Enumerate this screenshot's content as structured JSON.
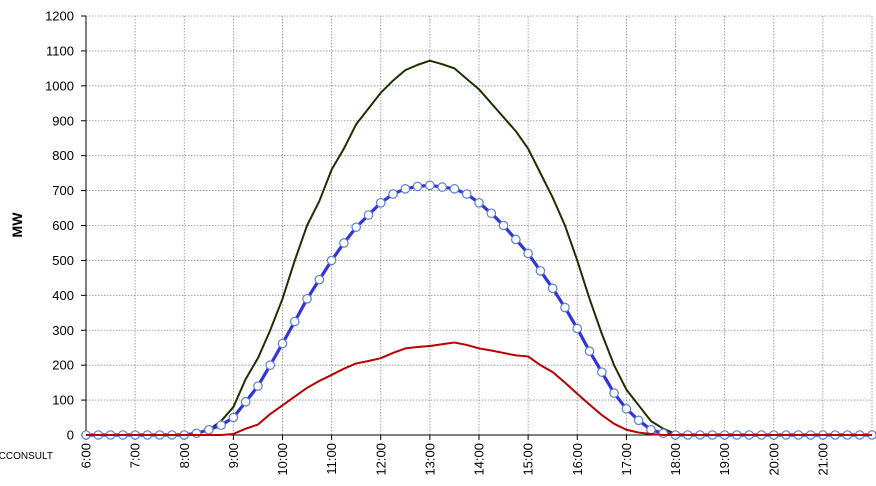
{
  "chart_data": {
    "type": "line",
    "title": "",
    "xlabel": "",
    "ylabel": "MW",
    "ylim": [
      0,
      1200
    ],
    "yticks": [
      0,
      100,
      200,
      300,
      400,
      500,
      600,
      700,
      800,
      900,
      1000,
      1100,
      1200
    ],
    "xlim": [
      6,
      22
    ],
    "xticks": [
      "6:00",
      "7:00",
      "8:00",
      "9:00",
      "10:00",
      "11:00",
      "12:00",
      "13:00",
      "14:00",
      "15:00",
      "16:00",
      "17:00",
      "18:00",
      "19:00",
      "20:00",
      "21:00"
    ],
    "grid": true,
    "watermark": "BCCONSULT",
    "series": [
      {
        "color": "#1a3300",
        "style": "solid",
        "x": [
          6.0,
          6.25,
          6.5,
          6.75,
          7.0,
          7.25,
          7.5,
          7.75,
          8.0,
          8.25,
          8.5,
          8.75,
          9.0,
          9.25,
          9.5,
          9.75,
          10.0,
          10.25,
          10.5,
          10.75,
          11.0,
          11.25,
          11.5,
          11.75,
          12.0,
          12.25,
          12.5,
          12.75,
          13.0,
          13.25,
          13.5,
          13.75,
          14.0,
          14.25,
          14.5,
          14.75,
          15.0,
          15.25,
          15.5,
          15.75,
          16.0,
          16.25,
          16.5,
          16.75,
          17.0,
          17.25,
          17.5,
          17.75,
          18.0,
          18.25,
          18.5,
          18.75,
          19.0,
          19.25,
          19.5,
          19.75,
          20.0,
          20.25,
          20.5,
          20.75,
          21.0,
          21.25,
          21.5,
          21.75,
          22.0
        ],
        "values": [
          0,
          0,
          0,
          0,
          0,
          0,
          0,
          0,
          0,
          5,
          15,
          40,
          80,
          160,
          220,
          300,
          390,
          500,
          600,
          670,
          760,
          820,
          890,
          935,
          980,
          1015,
          1045,
          1060,
          1072,
          1062,
          1050,
          1020,
          990,
          950,
          910,
          870,
          820,
          750,
          680,
          600,
          500,
          390,
          290,
          200,
          130,
          85,
          40,
          18,
          3,
          0,
          0,
          0,
          0,
          0,
          0,
          0,
          0,
          0,
          0,
          0,
          0,
          0,
          0,
          0,
          0
        ]
      },
      {
        "color": "#3333dd",
        "style": "solid",
        "marker": "circle",
        "x": [
          6.0,
          6.25,
          6.5,
          6.75,
          7.0,
          7.25,
          7.5,
          7.75,
          8.0,
          8.25,
          8.5,
          8.75,
          9.0,
          9.25,
          9.5,
          9.75,
          10.0,
          10.25,
          10.5,
          10.75,
          11.0,
          11.25,
          11.5,
          11.75,
          12.0,
          12.25,
          12.5,
          12.75,
          13.0,
          13.25,
          13.5,
          13.75,
          14.0,
          14.25,
          14.5,
          14.75,
          15.0,
          15.25,
          15.5,
          15.75,
          16.0,
          16.25,
          16.5,
          16.75,
          17.0,
          17.25,
          17.5,
          17.75,
          18.0,
          18.25,
          18.5,
          18.75,
          19.0,
          19.25,
          19.5,
          19.75,
          20.0,
          20.25,
          20.5,
          20.75,
          21.0,
          21.25,
          21.5,
          21.75,
          22.0
        ],
        "values": [
          0,
          0,
          0,
          0,
          0,
          0,
          0,
          0,
          0,
          5,
          15,
          28,
          50,
          95,
          140,
          200,
          262,
          325,
          390,
          445,
          500,
          550,
          595,
          630,
          665,
          690,
          705,
          712,
          715,
          710,
          705,
          690,
          665,
          635,
          600,
          560,
          520,
          470,
          420,
          365,
          305,
          240,
          180,
          120,
          75,
          42,
          15,
          5,
          0,
          0,
          0,
          0,
          0,
          0,
          0,
          0,
          0,
          0,
          0,
          0,
          0,
          0,
          0,
          0,
          0
        ]
      },
      {
        "color": "#bb0000",
        "style": "solid",
        "x": [
          6.0,
          6.25,
          6.5,
          6.75,
          7.0,
          7.25,
          7.5,
          7.75,
          8.0,
          8.25,
          8.5,
          8.75,
          9.0,
          9.25,
          9.5,
          9.75,
          10.0,
          10.25,
          10.5,
          10.75,
          11.0,
          11.25,
          11.5,
          11.75,
          12.0,
          12.25,
          12.5,
          12.75,
          13.0,
          13.25,
          13.5,
          13.75,
          14.0,
          14.25,
          14.5,
          14.75,
          15.0,
          15.25,
          15.5,
          15.75,
          16.0,
          16.25,
          16.5,
          16.75,
          17.0,
          17.25,
          17.5,
          17.75,
          18.0,
          18.25,
          18.5,
          18.75,
          19.0,
          19.25,
          19.5,
          19.75,
          20.0,
          20.25,
          20.5,
          20.75,
          21.0,
          21.25,
          21.5,
          21.75,
          22.0
        ],
        "values": [
          0,
          0,
          0,
          0,
          0,
          0,
          0,
          0,
          0,
          0,
          0,
          0,
          3,
          18,
          30,
          60,
          85,
          110,
          135,
          155,
          172,
          190,
          205,
          212,
          220,
          235,
          248,
          252,
          255,
          260,
          265,
          258,
          248,
          242,
          235,
          228,
          225,
          200,
          180,
          150,
          118,
          87,
          57,
          32,
          15,
          7,
          3,
          0,
          0,
          0,
          0,
          0,
          0,
          0,
          0,
          0,
          0,
          0,
          0,
          0,
          0,
          0,
          0,
          0,
          0
        ]
      }
    ]
  }
}
